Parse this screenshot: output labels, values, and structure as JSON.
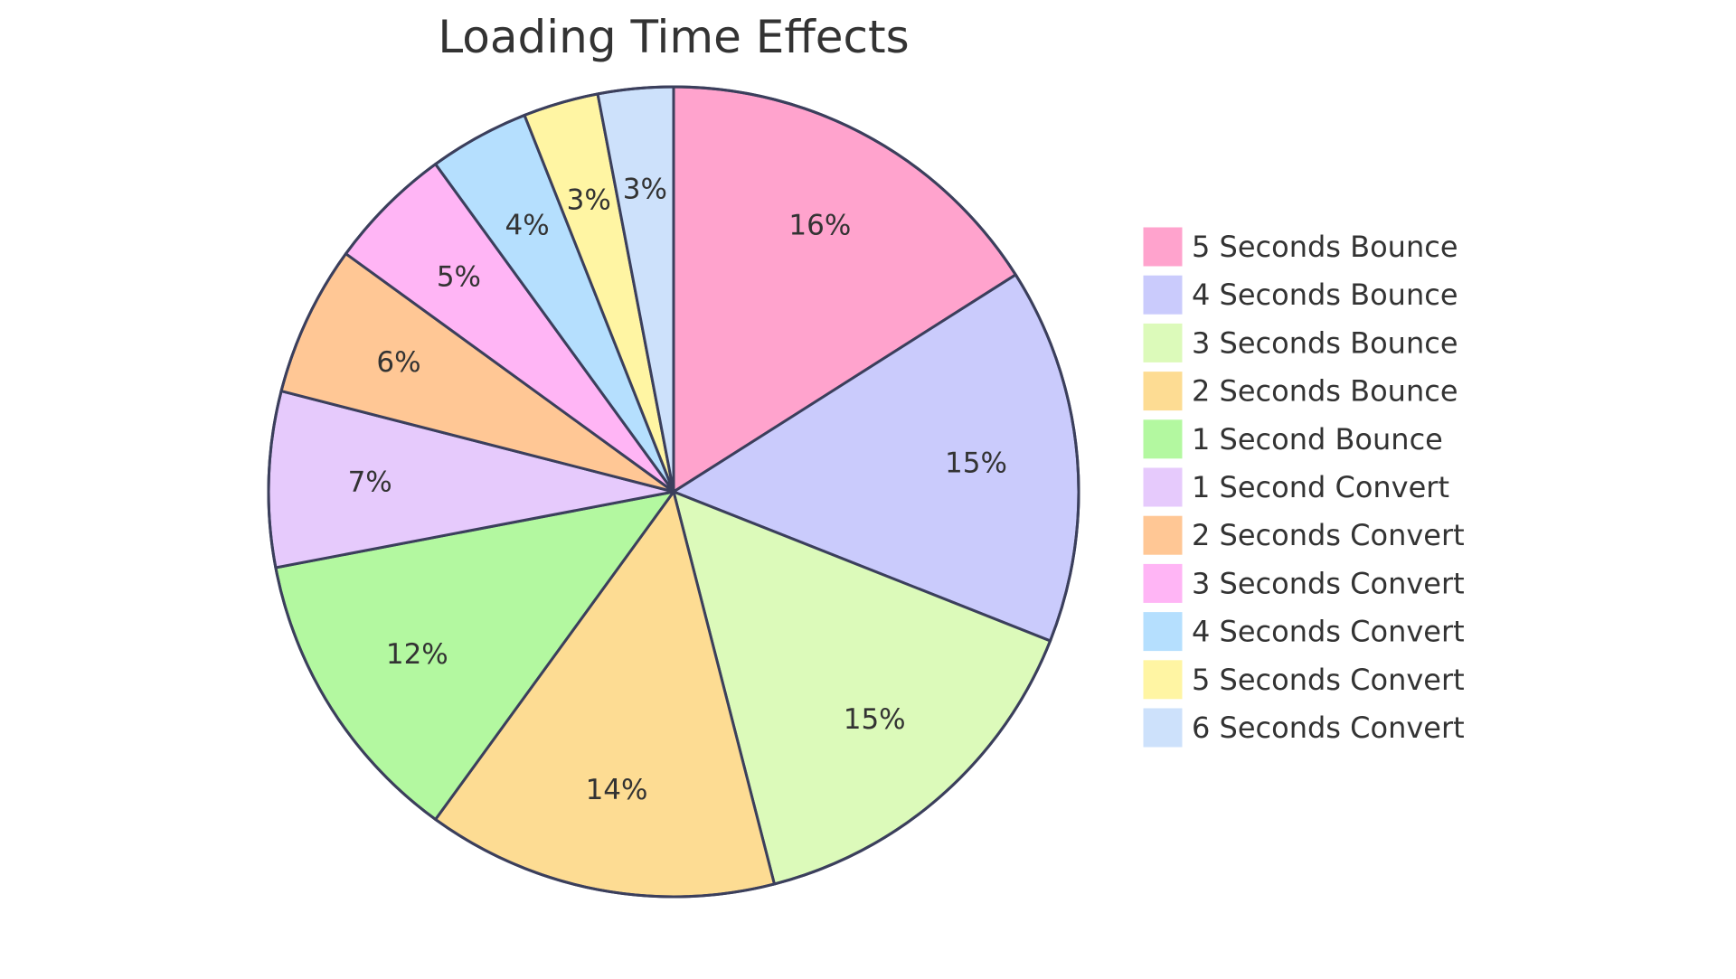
{
  "chart_data": {
    "type": "pie",
    "title": "Loading Time Effects",
    "start_angle_deg": 0,
    "direction": "clockwise",
    "legend_position": "right",
    "slices": [
      {
        "label": "5 Seconds Bounce",
        "value": 16,
        "display": "16%",
        "color": "#FFA3CD"
      },
      {
        "label": "4 Seconds Bounce",
        "value": 15,
        "display": "15%",
        "color": "#CACBFC"
      },
      {
        "label": "3 Seconds Bounce",
        "value": 15,
        "display": "15%",
        "color": "#DCFABA"
      },
      {
        "label": "2 Seconds Bounce",
        "value": 14,
        "display": "14%",
        "color": "#FDDC93"
      },
      {
        "label": "1 Second Bounce",
        "value": 12,
        "display": "12%",
        "color": "#B3F8A0"
      },
      {
        "label": "1 Second Convert",
        "value": 7,
        "display": "7%",
        "color": "#E6CAFC"
      },
      {
        "label": "2 Seconds Convert",
        "value": 6,
        "display": "6%",
        "color": "#FFC795"
      },
      {
        "label": "3 Seconds Convert",
        "value": 5,
        "display": "5%",
        "color": "#FFB5F5"
      },
      {
        "label": "4 Seconds Convert",
        "value": 4,
        "display": "4%",
        "color": "#B5DFFE"
      },
      {
        "label": "5 Seconds Convert",
        "value": 3,
        "display": "3%",
        "color": "#FFF5A3"
      },
      {
        "label": "6 Seconds Convert",
        "value": 3,
        "display": "3%",
        "color": "#CDE1FB"
      }
    ]
  }
}
